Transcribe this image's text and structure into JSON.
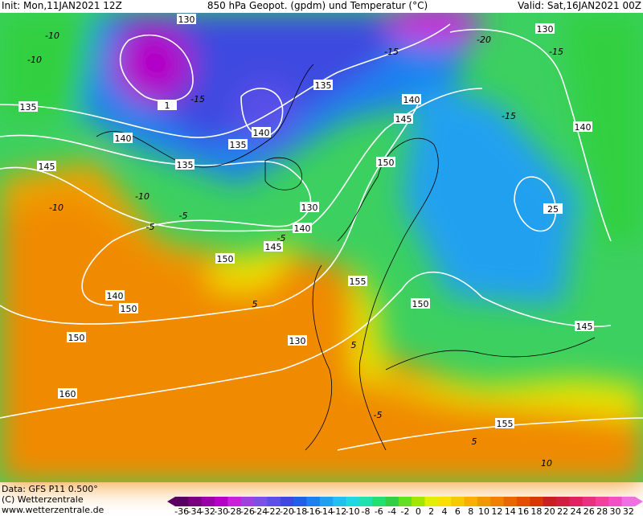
{
  "header": {
    "init": "Init: Mon,11JAN2021 12Z",
    "title": "850 hPa Geopot. (gpdm) und Temperatur (°C)",
    "valid": "Valid: Sat,16JAN2021 00Z"
  },
  "map": {
    "geopotential_labels": [
      "130",
      "130",
      "130",
      "135",
      "135",
      "135",
      "135",
      "140",
      "140",
      "140",
      "140",
      "140",
      "140",
      "145",
      "145",
      "145",
      "145",
      "150",
      "150",
      "150",
      "150",
      "150",
      "155",
      "155",
      "160",
      "130",
      "25",
      "1"
    ],
    "temperature_labels": [
      "-10",
      "-10",
      "-15",
      "-15",
      "-20",
      "-15",
      "-15",
      "-10",
      "-5",
      "-5",
      "-5",
      "5",
      "5",
      "5",
      "-5",
      "10",
      "-10"
    ]
  },
  "footer": {
    "data": "Data: GFS P11 0.500°",
    "copyright": "(C) Wetterzentrale",
    "url": "www.wetterzentrale.de"
  },
  "legend": {
    "ticks": [
      -36,
      -34,
      -32,
      -30,
      -28,
      -26,
      -24,
      -22,
      -20,
      -18,
      -16,
      -14,
      -12,
      -10,
      -8,
      -6,
      -4,
      -2,
      0,
      2,
      4,
      6,
      8,
      10,
      12,
      14,
      16,
      18,
      20,
      22,
      24,
      26,
      28,
      30,
      32
    ],
    "colors": [
      "#5a0060",
      "#7a0080",
      "#9a00a8",
      "#b400c8",
      "#c820dc",
      "#a040e0",
      "#7a50e8",
      "#5a50e8",
      "#3c48e0",
      "#2060e8",
      "#1c80f0",
      "#20a0f0",
      "#20c0f0",
      "#20d8e0",
      "#20e0b0",
      "#20e070",
      "#30d040",
      "#60e020",
      "#a0e800",
      "#e0f000",
      "#f8e000",
      "#f8c800",
      "#f8b000",
      "#f09800",
      "#f08000",
      "#e86800",
      "#e05000",
      "#d83800",
      "#c82020",
      "#d02040",
      "#e02060",
      "#e83080",
      "#f040a0",
      "#f050c0",
      "#f070e0"
    ]
  }
}
